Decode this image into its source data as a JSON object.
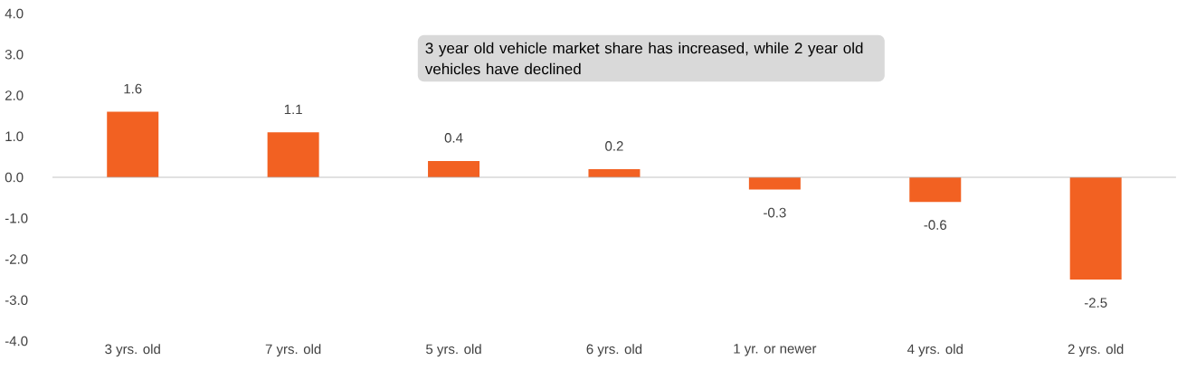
{
  "chart_data": {
    "type": "bar",
    "categories": [
      "3 yrs. old",
      "7 yrs. old",
      "5 yrs. old",
      "6 yrs. old",
      "1 yr. or newer",
      "4 yrs. old",
      "2 yrs. old"
    ],
    "values": [
      1.6,
      1.1,
      0.4,
      0.2,
      -0.3,
      -0.6,
      -2.5
    ],
    "color": "#f26122",
    "ylim": [
      -4,
      4
    ],
    "yticks": [
      {
        "value": -4,
        "label": "-4.0"
      },
      {
        "value": -3,
        "label": "-3.0"
      },
      {
        "value": -2,
        "label": "-2.0"
      },
      {
        "value": -1,
        "label": "-1.0"
      },
      {
        "value": 0,
        "label": "0.0"
      },
      {
        "value": 1,
        "label": "1.0"
      },
      {
        "value": 2,
        "label": "2.0"
      },
      {
        "value": 3,
        "label": "3.0"
      },
      {
        "value": 4,
        "label": "4.0"
      }
    ],
    "data_labels": true,
    "annotations": [
      "3 year old vehicle market share has increased, while 2 year old vehicles have declined"
    ]
  }
}
